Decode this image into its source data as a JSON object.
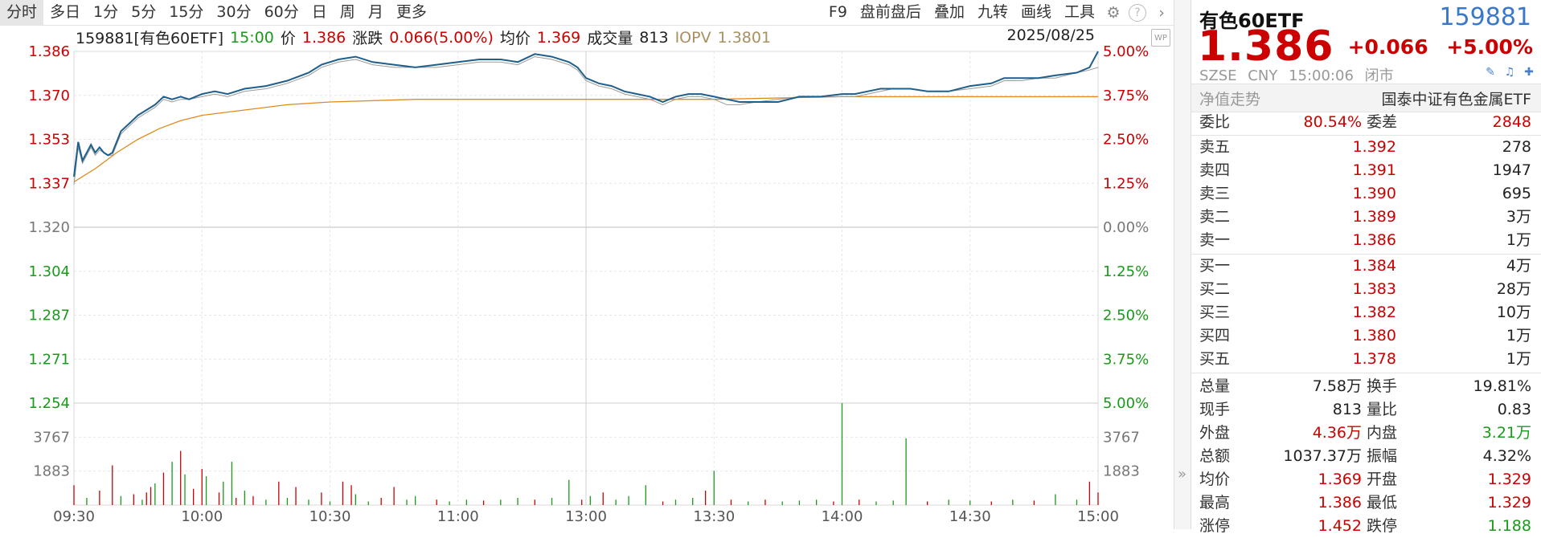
{
  "toolbar": {
    "left": [
      "分时",
      "多日",
      "1分",
      "5分",
      "15分",
      "30分",
      "60分",
      "日",
      "周",
      "月",
      "更多"
    ],
    "right": [
      "F9",
      "盘前盘后",
      "叠加",
      "九转",
      "画线",
      "工具"
    ],
    "gear_icon": "gear-icon",
    "help_icon": "help-icon",
    "chevron_icon": "chevron-right-icon"
  },
  "info": {
    "code_name": "159881[有色60ETF]",
    "time": "15:00",
    "price_label": "价",
    "price": "1.386",
    "change_label": "涨跌",
    "change": "0.066(5.00%)",
    "avg_label": "均价",
    "avg": "1.369",
    "volume_label": "成交量",
    "volume": "813",
    "iopv_label": "IOPV",
    "iopv": "1.3801",
    "date": "2025/08/25",
    "wp_label": "WP"
  },
  "side": {
    "name": "有色60ETF",
    "code": "159881",
    "price": "1.386",
    "change": "+0.066",
    "change_pct": "+5.00%",
    "exchange": "SZSE",
    "currency": "CNY",
    "time": "15:00:06",
    "status": "闭市",
    "nav_tab": "净值走势",
    "fund_name": "国泰中证有色金属ETF",
    "weibi_label": "委比",
    "weibi": "80.54%",
    "weicha_label": "委差",
    "weicha": "2848",
    "asks": [
      {
        "label": "卖五",
        "price": "1.392",
        "qty": "278"
      },
      {
        "label": "卖四",
        "price": "1.391",
        "qty": "1947"
      },
      {
        "label": "卖三",
        "price": "1.390",
        "qty": "695"
      },
      {
        "label": "卖二",
        "price": "1.389",
        "qty": "3万"
      },
      {
        "label": "卖一",
        "price": "1.386",
        "qty": "1万"
      }
    ],
    "bids": [
      {
        "label": "买一",
        "price": "1.384",
        "qty": "4万"
      },
      {
        "label": "买二",
        "price": "1.383",
        "qty": "28万"
      },
      {
        "label": "买三",
        "price": "1.382",
        "qty": "10万"
      },
      {
        "label": "买四",
        "price": "1.380",
        "qty": "1万"
      },
      {
        "label": "买五",
        "price": "1.378",
        "qty": "1万"
      }
    ],
    "stats": [
      {
        "k1": "总量",
        "v1": "7.58万",
        "c1": "#222",
        "k2": "换手",
        "v2": "19.81%",
        "c2": "#222"
      },
      {
        "k1": "现手",
        "v1": "813",
        "c1": "#222",
        "k2": "量比",
        "v2": "0.83",
        "c2": "#222"
      },
      {
        "k1": "外盘",
        "v1": "4.36万",
        "c1": "#cc0000",
        "k2": "内盘",
        "v2": "3.21万",
        "c2": "#1a9a1a"
      },
      {
        "k1": "总额",
        "v1": "1037.37万",
        "c1": "#222",
        "k2": "振幅",
        "v2": "4.32%",
        "c2": "#222"
      },
      {
        "k1": "均价",
        "v1": "1.369",
        "c1": "#cc0000",
        "k2": "开盘",
        "v2": "1.329",
        "c2": "#cc0000"
      },
      {
        "k1": "最高",
        "v1": "1.386",
        "c1": "#cc0000",
        "k2": "最低",
        "v2": "1.329",
        "c2": "#cc0000"
      },
      {
        "k1": "涨停",
        "v1": "1.452",
        "c1": "#cc0000",
        "k2": "跌停",
        "v2": "1.188",
        "c2": "#1a9a1a"
      }
    ]
  },
  "colors": {
    "price_line": "#1f5f8b",
    "avg_line": "#e08a1e",
    "iopv_line": "#9a9a9a",
    "up": "#cc0000",
    "down": "#1a9a1a"
  },
  "chart_data": {
    "type": "line",
    "prev_close": 1.32,
    "ylim": [
      1.254,
      1.386
    ],
    "price_ticks": [
      "1.386",
      "1.370",
      "1.353",
      "1.337",
      "1.320",
      "1.304",
      "1.287",
      "1.271",
      "1.254"
    ],
    "pct_ticks": [
      "5.00%",
      "3.75%",
      "2.50%",
      "1.25%",
      "0.00%",
      "1.25%",
      "2.50%",
      "3.75%",
      "5.00%"
    ],
    "x_ticks": [
      "09:30",
      "10:00",
      "10:30",
      "11:00",
      "13:00",
      "13:30",
      "14:00",
      "14:30",
      "15:00"
    ],
    "volume_ticks": [
      "3767",
      "1883"
    ],
    "volume_max": 5650,
    "total_minutes": 240,
    "series": [
      {
        "key": "price",
        "points": [
          [
            0,
            1.339
          ],
          [
            1,
            1.352
          ],
          [
            2,
            1.345
          ],
          [
            3,
            1.348
          ],
          [
            4,
            1.351
          ],
          [
            5,
            1.348
          ],
          [
            6,
            1.35
          ],
          [
            7,
            1.348
          ],
          [
            8,
            1.347
          ],
          [
            9,
            1.348
          ],
          [
            11,
            1.356
          ],
          [
            13,
            1.359
          ],
          [
            15,
            1.362
          ],
          [
            17,
            1.364
          ],
          [
            19,
            1.366
          ],
          [
            21,
            1.369
          ],
          [
            23,
            1.368
          ],
          [
            25,
            1.369
          ],
          [
            27,
            1.368
          ],
          [
            30,
            1.37
          ],
          [
            33,
            1.371
          ],
          [
            36,
            1.37
          ],
          [
            40,
            1.372
          ],
          [
            45,
            1.373
          ],
          [
            50,
            1.375
          ],
          [
            55,
            1.378
          ],
          [
            58,
            1.381
          ],
          [
            62,
            1.383
          ],
          [
            66,
            1.384
          ],
          [
            70,
            1.382
          ],
          [
            75,
            1.381
          ],
          [
            80,
            1.38
          ],
          [
            85,
            1.381
          ],
          [
            90,
            1.382
          ],
          [
            95,
            1.383
          ],
          [
            100,
            1.383
          ],
          [
            104,
            1.382
          ],
          [
            108,
            1.385
          ],
          [
            112,
            1.384
          ],
          [
            116,
            1.382
          ],
          [
            118,
            1.38
          ],
          [
            120,
            1.376
          ],
          [
            123,
            1.374
          ],
          [
            126,
            1.373
          ],
          [
            129,
            1.371
          ],
          [
            132,
            1.37
          ],
          [
            135,
            1.369
          ],
          [
            138,
            1.367
          ],
          [
            141,
            1.369
          ],
          [
            144,
            1.37
          ],
          [
            147,
            1.37
          ],
          [
            150,
            1.369
          ],
          [
            153,
            1.368
          ],
          [
            156,
            1.367
          ],
          [
            160,
            1.367
          ],
          [
            165,
            1.367
          ],
          [
            170,
            1.369
          ],
          [
            175,
            1.369
          ],
          [
            180,
            1.37
          ],
          [
            183,
            1.37
          ],
          [
            186,
            1.371
          ],
          [
            189,
            1.372
          ],
          [
            192,
            1.372
          ],
          [
            196,
            1.372
          ],
          [
            200,
            1.371
          ],
          [
            205,
            1.371
          ],
          [
            210,
            1.373
          ],
          [
            215,
            1.374
          ],
          [
            218,
            1.376
          ],
          [
            222,
            1.376
          ],
          [
            226,
            1.376
          ],
          [
            230,
            1.377
          ],
          [
            235,
            1.378
          ],
          [
            238,
            1.38
          ],
          [
            240,
            1.386
          ]
        ]
      },
      {
        "key": "iopv",
        "points": [
          [
            0,
            1.336
          ],
          [
            1,
            1.35
          ],
          [
            2,
            1.344
          ],
          [
            3,
            1.347
          ],
          [
            4,
            1.35
          ],
          [
            5,
            1.347
          ],
          [
            6,
            1.349
          ],
          [
            7,
            1.348
          ],
          [
            8,
            1.347
          ],
          [
            9,
            1.347
          ],
          [
            11,
            1.355
          ],
          [
            13,
            1.358
          ],
          [
            15,
            1.361
          ],
          [
            17,
            1.363
          ],
          [
            19,
            1.365
          ],
          [
            21,
            1.368
          ],
          [
            23,
            1.367
          ],
          [
            25,
            1.368
          ],
          [
            27,
            1.368
          ],
          [
            30,
            1.369
          ],
          [
            33,
            1.37
          ],
          [
            36,
            1.369
          ],
          [
            40,
            1.371
          ],
          [
            45,
            1.372
          ],
          [
            50,
            1.374
          ],
          [
            55,
            1.377
          ],
          [
            58,
            1.38
          ],
          [
            62,
            1.382
          ],
          [
            66,
            1.383
          ],
          [
            70,
            1.381
          ],
          [
            75,
            1.38
          ],
          [
            80,
            1.38
          ],
          [
            85,
            1.38
          ],
          [
            90,
            1.381
          ],
          [
            95,
            1.382
          ],
          [
            100,
            1.382
          ],
          [
            104,
            1.381
          ],
          [
            108,
            1.384
          ],
          [
            112,
            1.383
          ],
          [
            116,
            1.381
          ],
          [
            118,
            1.379
          ],
          [
            120,
            1.375
          ],
          [
            123,
            1.373
          ],
          [
            126,
            1.372
          ],
          [
            129,
            1.37
          ],
          [
            132,
            1.369
          ],
          [
            135,
            1.368
          ],
          [
            138,
            1.366
          ],
          [
            141,
            1.368
          ],
          [
            144,
            1.369
          ],
          [
            147,
            1.369
          ],
          [
            150,
            1.368
          ],
          [
            153,
            1.366
          ],
          [
            156,
            1.366
          ],
          [
            160,
            1.367
          ],
          [
            165,
            1.368
          ],
          [
            170,
            1.369
          ],
          [
            175,
            1.369
          ],
          [
            180,
            1.369
          ],
          [
            183,
            1.369
          ],
          [
            186,
            1.37
          ],
          [
            189,
            1.371
          ],
          [
            192,
            1.372
          ],
          [
            196,
            1.372
          ],
          [
            200,
            1.371
          ],
          [
            205,
            1.371
          ],
          [
            210,
            1.372
          ],
          [
            215,
            1.373
          ],
          [
            218,
            1.375
          ],
          [
            222,
            1.375
          ],
          [
            226,
            1.376
          ],
          [
            230,
            1.376
          ],
          [
            235,
            1.378
          ],
          [
            238,
            1.379
          ],
          [
            240,
            1.38
          ]
        ]
      },
      {
        "key": "avg",
        "points": [
          [
            0,
            1.337
          ],
          [
            5,
            1.342
          ],
          [
            10,
            1.348
          ],
          [
            15,
            1.353
          ],
          [
            20,
            1.357
          ],
          [
            25,
            1.36
          ],
          [
            30,
            1.362
          ],
          [
            40,
            1.364
          ],
          [
            50,
            1.366
          ],
          [
            60,
            1.367
          ],
          [
            80,
            1.368
          ],
          [
            100,
            1.368
          ],
          [
            120,
            1.368
          ],
          [
            150,
            1.368
          ],
          [
            180,
            1.369
          ],
          [
            210,
            1.369
          ],
          [
            240,
            1.369
          ]
        ]
      }
    ],
    "volume": [
      [
        0,
        1100,
        "up"
      ],
      [
        3,
        400,
        "down"
      ],
      [
        6,
        800,
        "up"
      ],
      [
        9,
        2200,
        "up"
      ],
      [
        11,
        500,
        "down"
      ],
      [
        14,
        600,
        "up"
      ],
      [
        16,
        300,
        "down"
      ],
      [
        17,
        700,
        "up"
      ],
      [
        18,
        1000,
        "up"
      ],
      [
        19,
        1200,
        "down"
      ],
      [
        21,
        1800,
        "up"
      ],
      [
        23,
        2400,
        "down"
      ],
      [
        25,
        3000,
        "up"
      ],
      [
        26,
        1700,
        "down"
      ],
      [
        28,
        900,
        "up"
      ],
      [
        30,
        2000,
        "up"
      ],
      [
        31,
        1600,
        "down"
      ],
      [
        34,
        700,
        "up"
      ],
      [
        35,
        1300,
        "down"
      ],
      [
        37,
        2400,
        "down"
      ],
      [
        38,
        400,
        "up"
      ],
      [
        40,
        800,
        "down"
      ],
      [
        42,
        500,
        "up"
      ],
      [
        45,
        300,
        "down"
      ],
      [
        48,
        1300,
        "up"
      ],
      [
        50,
        400,
        "down"
      ],
      [
        52,
        1000,
        "up"
      ],
      [
        55,
        300,
        "down"
      ],
      [
        58,
        700,
        "up"
      ],
      [
        60,
        200,
        "down"
      ],
      [
        63,
        1300,
        "up"
      ],
      [
        65,
        1100,
        "up"
      ],
      [
        66,
        600,
        "down"
      ],
      [
        69,
        200,
        "down"
      ],
      [
        72,
        400,
        "up"
      ],
      [
        75,
        1000,
        "up"
      ],
      [
        78,
        300,
        "down"
      ],
      [
        80,
        500,
        "down"
      ],
      [
        85,
        300,
        "up"
      ],
      [
        88,
        200,
        "down"
      ],
      [
        92,
        300,
        "down"
      ],
      [
        96,
        250,
        "up"
      ],
      [
        100,
        300,
        "down"
      ],
      [
        104,
        400,
        "down"
      ],
      [
        108,
        300,
        "up"
      ],
      [
        112,
        400,
        "down"
      ],
      [
        116,
        1400,
        "down"
      ],
      [
        119,
        300,
        "up"
      ],
      [
        121,
        500,
        "down"
      ],
      [
        124,
        700,
        "up"
      ],
      [
        127,
        300,
        "down"
      ],
      [
        130,
        500,
        "down"
      ],
      [
        134,
        1100,
        "down"
      ],
      [
        138,
        200,
        "up"
      ],
      [
        141,
        300,
        "down"
      ],
      [
        145,
        400,
        "down"
      ],
      [
        148,
        800,
        "up"
      ],
      [
        150,
        1900,
        "down"
      ],
      [
        154,
        300,
        "up"
      ],
      [
        158,
        200,
        "down"
      ],
      [
        162,
        300,
        "up"
      ],
      [
        166,
        200,
        "down"
      ],
      [
        170,
        250,
        "down"
      ],
      [
        174,
        300,
        "down"
      ],
      [
        178,
        200,
        "up"
      ],
      [
        180,
        5650,
        "down"
      ],
      [
        184,
        300,
        "up"
      ],
      [
        188,
        200,
        "down"
      ],
      [
        192,
        250,
        "down"
      ],
      [
        195,
        3700,
        "down"
      ],
      [
        200,
        200,
        "up"
      ],
      [
        205,
        300,
        "down"
      ],
      [
        210,
        250,
        "down"
      ],
      [
        215,
        200,
        "up"
      ],
      [
        220,
        300,
        "down"
      ],
      [
        225,
        250,
        "up"
      ],
      [
        230,
        600,
        "down"
      ],
      [
        235,
        300,
        "down"
      ],
      [
        238,
        1300,
        "up"
      ],
      [
        240,
        700,
        "up"
      ]
    ]
  }
}
